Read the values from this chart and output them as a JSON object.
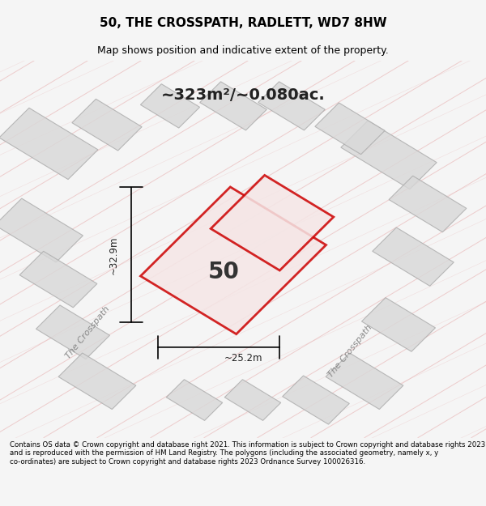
{
  "title": "50, THE CROSSPATH, RADLETT, WD7 8HW",
  "subtitle": "Map shows position and indicative extent of the property.",
  "area_text": "~323m²/~0.080ac.",
  "label_50": "50",
  "dim_height": "~32.9m",
  "dim_width": "~25.2m",
  "road_label_left": "The Crosspath",
  "road_label_right": "The Crosspath",
  "footer": "Contains OS data © Crown copyright and database right 2021. This information is subject to Crown copyright and database rights 2023 and is reproduced with the permission of HM Land Registry. The polygons (including the associated geometry, namely x, y co-ordinates) are subject to Crown copyright and database rights 2023 Ordnance Survey 100026316.",
  "bg_color": "#f5f5f5",
  "map_bg": "#f0eeec",
  "plot_color": "#cc0000",
  "plot_fill": "#f5e6e6",
  "neighbor_fill": "#d8d8d8",
  "neighbor_stroke": "#aaaaaa",
  "road_line_color": "#e8b0b0",
  "footer_bg": "#ffffff"
}
